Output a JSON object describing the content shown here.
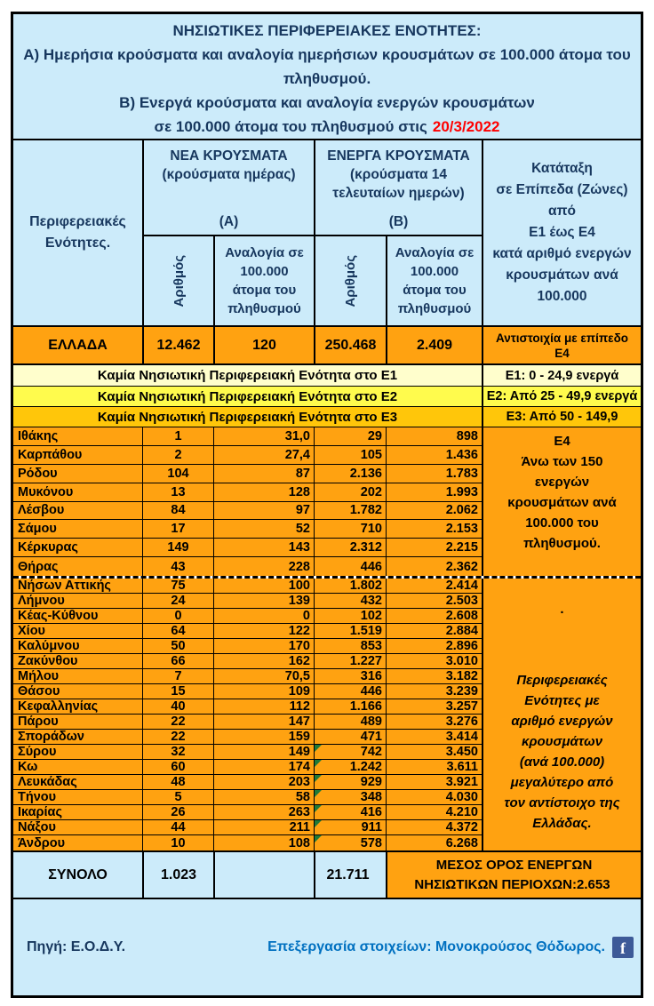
{
  "title": {
    "heading": "ΝΗΣΙΩΤΙΚΕΣ ΠΕΡΙΦΕΡΕΙΑΚΕΣ ΕΝΟΤΗΤΕΣ:",
    "item_a": "Α) Ημερήσια κρούσματα και αναλογία ημερήσιων κρουσμάτων σε 100.000 άτομα του πληθυσμού.",
    "item_b": "Β) Ενεργά κρούσματα και αναλογία ενεργών κρουσμάτων",
    "line_c_prefix": "σε 100.000 άτομα του πληθυσμού στις",
    "date": "20/3/2022"
  },
  "columns": {
    "region": "Περιφερειακές\nΕνότητες.",
    "new": {
      "title": "ΝΕΑ ΚΡΟΥΣΜΑΤΑ\n(κρούσματα ημέρας)",
      "tag": "(Α)"
    },
    "active": {
      "title": "ΕΝΕΡΓΑ ΚΡΟΥΣΜΑΤΑ\n(κρούσματα 14\nτελευταίων ημερών)",
      "tag": "(Β)"
    },
    "count": "Αριθμός",
    "ratio": "Αναλογία σε\n100.000\nάτομα του\nπληθυσμού",
    "ranking": "Κατάταξη\nσε Επίπεδα (Ζώνες)\nαπό\nΕ1 έως Ε4\nκατά αριθμό ενεργών\nκρουσμάτων ανά\n100.000"
  },
  "greece": {
    "name": "ΕΛΛΑΔΑ",
    "new_count": "12.462",
    "new_ratio": "120",
    "active_count": "250.468",
    "active_ratio": "2.409",
    "level": "Αντιστοιχία με επίπεδο\nΕ4"
  },
  "zones": [
    {
      "message": "Καμία Νησιωτική Περιφερειακή Ενότητα στο Ε1",
      "label": "Ε1: 0 - 24,9 ενεργά"
    },
    {
      "message": "Καμία Νησιωτική Περιφερειακή Ενότητα στο Ε2",
      "label": "Ε2: Από 25 - 49,9 ενεργά"
    },
    {
      "message": "Καμία Νησιωτική Περιφερειακή Ενότητα στο Ε3",
      "label": "Ε3: Από 50 - 149,9"
    }
  ],
  "islands_top": [
    {
      "name": "Ιθάκης",
      "new_count": "1",
      "new_ratio": "31,0",
      "active_count": "29",
      "active_ratio": "898",
      "marker": false
    },
    {
      "name": "Καρπάθου",
      "new_count": "2",
      "new_ratio": "27,4",
      "active_count": "105",
      "active_ratio": "1.436",
      "marker": false
    },
    {
      "name": "Ρόδου",
      "new_count": "104",
      "new_ratio": "87",
      "active_count": "2.136",
      "active_ratio": "1.783",
      "marker": false
    },
    {
      "name": "Μυκόνου",
      "new_count": "13",
      "new_ratio": "128",
      "active_count": "202",
      "active_ratio": "1.993",
      "marker": false
    },
    {
      "name": "Λέσβου",
      "new_count": "84",
      "new_ratio": "97",
      "active_count": "1.782",
      "active_ratio": "2.062",
      "marker": false
    },
    {
      "name": "Σάμου",
      "new_count": "17",
      "new_ratio": "52",
      "active_count": "710",
      "active_ratio": "2.153",
      "marker": false
    },
    {
      "name": "Κέρκυρας",
      "new_count": "149",
      "new_ratio": "143",
      "active_count": "2.312",
      "active_ratio": "2.215",
      "marker": false
    },
    {
      "name": "Θήρας",
      "new_count": "43",
      "new_ratio": "228",
      "active_count": "446",
      "active_ratio": "2.362",
      "marker": false
    }
  ],
  "islands_bottom": [
    {
      "name": "Νήσων Αττικής",
      "new_count": "75",
      "new_ratio": "100",
      "active_count": "1.802",
      "active_ratio": "2.414",
      "marker": false
    },
    {
      "name": "Λήμνου",
      "new_count": "24",
      "new_ratio": "139",
      "active_count": "432",
      "active_ratio": "2.503",
      "marker": false
    },
    {
      "name": "Κέας-Κύθνου",
      "new_count": "0",
      "new_ratio": "0",
      "active_count": "102",
      "active_ratio": "2.608",
      "marker": false
    },
    {
      "name": "Χίου",
      "new_count": "64",
      "new_ratio": "122",
      "active_count": "1.519",
      "active_ratio": "2.884",
      "marker": false
    },
    {
      "name": "Καλύμνου",
      "new_count": "50",
      "new_ratio": "170",
      "active_count": "853",
      "active_ratio": "2.896",
      "marker": false
    },
    {
      "name": "Ζακύνθου",
      "new_count": "66",
      "new_ratio": "162",
      "active_count": "1.227",
      "active_ratio": "3.010",
      "marker": false
    },
    {
      "name": "Μήλου",
      "new_count": "7",
      "new_ratio": "70,5",
      "active_count": "316",
      "active_ratio": "3.182",
      "marker": false
    },
    {
      "name": "Θάσου",
      "new_count": "15",
      "new_ratio": "109",
      "active_count": "446",
      "active_ratio": "3.239",
      "marker": false
    },
    {
      "name": "Κεφαλληνίας",
      "new_count": "40",
      "new_ratio": "112",
      "active_count": "1.166",
      "active_ratio": "3.257",
      "marker": false
    },
    {
      "name": "Πάρου",
      "new_count": "22",
      "new_ratio": "147",
      "active_count": "489",
      "active_ratio": "3.276",
      "marker": false
    },
    {
      "name": "Σποράδων",
      "new_count": "22",
      "new_ratio": "159",
      "active_count": "471",
      "active_ratio": "3.414",
      "marker": false
    },
    {
      "name": "Σύρου",
      "new_count": "32",
      "new_ratio": "149",
      "active_count": "742",
      "active_ratio": "3.450",
      "marker": true
    },
    {
      "name": "Κω",
      "new_count": "60",
      "new_ratio": "174",
      "active_count": "1.242",
      "active_ratio": "3.611",
      "marker": true
    },
    {
      "name": "Λευκάδας",
      "new_count": "48",
      "new_ratio": "203",
      "active_count": "929",
      "active_ratio": "3.921",
      "marker": true
    },
    {
      "name": "Τήνου",
      "new_count": "5",
      "new_ratio": "58",
      "active_count": "348",
      "active_ratio": "4.030",
      "marker": true
    },
    {
      "name": "Ικαρίας",
      "new_count": "26",
      "new_ratio": "263",
      "active_count": "416",
      "active_ratio": "4.210",
      "marker": true
    },
    {
      "name": "Νάξου",
      "new_count": "44",
      "new_ratio": "211",
      "active_count": "911",
      "active_ratio": "4.372",
      "marker": true
    },
    {
      "name": "Άνδρου",
      "new_count": "10",
      "new_ratio": "108",
      "active_count": "578",
      "active_ratio": "6.268",
      "marker": true
    }
  ],
  "e4_notes": {
    "top": "Ε4\nΆνω των 150\nενεργών\nκρουσμάτων ανά\n100.000 του\nπληθυσμού.",
    "dot": ".",
    "bottom": "Περιφερειακές\nΕνότητες με\nαριθμό ενεργών\nκρουσμάτων\n(ανά 100.000)\nμεγαλύτερο από\nτον αντίστοιχο της\nΕλλάδας."
  },
  "total": {
    "label": "ΣΥΝΟΛΟ",
    "new_count": "1.023",
    "active_count": "21.711",
    "avg_line1": "ΜΕΣΟΣ ΟΡΟΣ ΕΝΕΡΓΩΝ",
    "avg_line2": "ΝΗΣΙΩΤΙΚΩΝ ΠΕΡΙΟΧΩΝ:",
    "avg_value": "2.653"
  },
  "footer": {
    "source": "Πηγή: Ε.Ο.Δ.Υ.",
    "credit": "Επεξεργασία στοιχείων: Μονοκρούσος Θόδωρος.",
    "facebook_glyph": "f"
  },
  "colors": {
    "light_blue": "#CCEBFA",
    "orange": "#FFA211",
    "zone_e1": "#FFFECC",
    "zone_e2": "#FFFB4D",
    "zone_e3": "#FFC60A",
    "navy_text": "#17375E",
    "date_red": "#FF0000",
    "credit_blue": "#0070C0",
    "facebook_blue": "#3D5A98",
    "marker_green": "#217A38"
  }
}
